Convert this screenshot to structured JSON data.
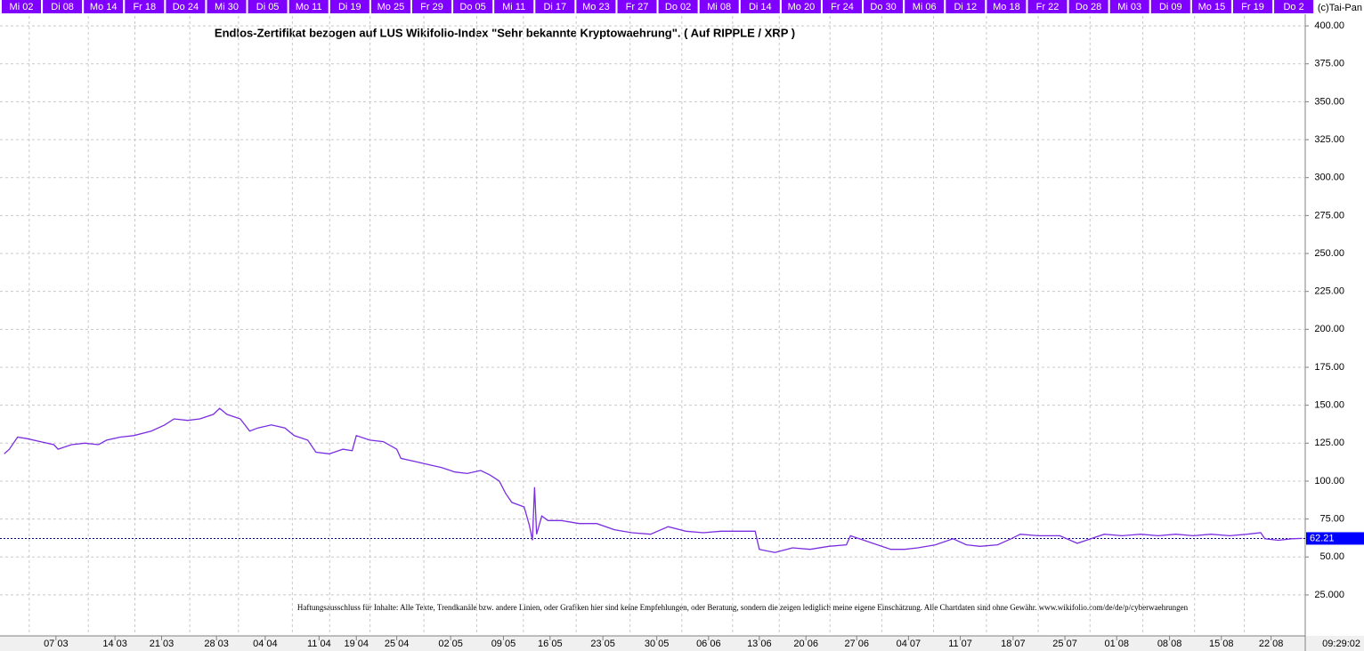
{
  "chart_data": {
    "type": "line",
    "title": "Endlos-Zertifikat bezogen auf LUS Wikifolio-Index \"Sehr bekannte Kryptowaehrung\". ( Auf RIPPLE / XRP )",
    "copyright": "(c)Tai-Pan",
    "disclaimer": "Haftungsausschluss für Inhalte: Alle Texte, Trendkanäle bzw. andere Linien, oder Grafiken hier sind keine Empfehlungen, oder Beratung, sondern die zeigen lediglich meine eigene Einschätzung. Alle Chartdaten sind ohne Gewähr.  www.wikifolio.com/de/de/p/cyberwaehrungen",
    "time": "09:29:02",
    "top_labels": [
      "Mi 02",
      "Di 08",
      "Mo 14",
      "Fr 18",
      "Do 24",
      "Mi 30",
      "Di 05",
      "Mo 11",
      "Di 19",
      "Mo 25",
      "Fr 29",
      "Do 05",
      "Mi 11",
      "Di 17",
      "Mo 23",
      "Fr 27",
      "Do 02",
      "Mi 08",
      "Di 14",
      "Mo 20",
      "Fr 24",
      "Do 30",
      "Mi 06",
      "Di 12",
      "Mo 18",
      "Fr 22",
      "Do 28",
      "Mi 03",
      "Di 09",
      "Mo 15",
      "Fr 19",
      "Do 2"
    ],
    "last_value": 62.21,
    "color": "#7a2ee0",
    "grid": true,
    "xlim": [
      0,
      126
    ],
    "ylim": [
      -2,
      406.5
    ],
    "xticks": [
      {
        "value": 5.4,
        "label": "07 03"
      },
      {
        "value": 11.1,
        "label": "14 03"
      },
      {
        "value": 15.6,
        "label": "21 03"
      },
      {
        "value": 20.9,
        "label": "28 03"
      },
      {
        "value": 25.6,
        "label": "04 04"
      },
      {
        "value": 30.8,
        "label": "11 04"
      },
      {
        "value": 34.4,
        "label": "19 04"
      },
      {
        "value": 38.3,
        "label": "25 04"
      },
      {
        "value": 43.5,
        "label": "02 05"
      },
      {
        "value": 48.6,
        "label": "09 05"
      },
      {
        "value": 53.1,
        "label": "16 05"
      },
      {
        "value": 58.2,
        "label": "23 05"
      },
      {
        "value": 63.4,
        "label": "30 05"
      },
      {
        "value": 68.4,
        "label": "06 06"
      },
      {
        "value": 73.3,
        "label": "13 06"
      },
      {
        "value": 77.8,
        "label": "20 06"
      },
      {
        "value": 82.7,
        "label": "27 06"
      },
      {
        "value": 87.7,
        "label": "04 07"
      },
      {
        "value": 92.7,
        "label": "11 07"
      },
      {
        "value": 97.8,
        "label": "18 07"
      },
      {
        "value": 102.8,
        "label": "25 07"
      },
      {
        "value": 107.8,
        "label": "01 08"
      },
      {
        "value": 112.9,
        "label": "08 08"
      },
      {
        "value": 117.9,
        "label": "15 08"
      },
      {
        "value": 122.7,
        "label": "22 08"
      }
    ],
    "yticks": [
      {
        "value": 400,
        "label": "400.00"
      },
      {
        "value": 375,
        "label": "375.00"
      },
      {
        "value": 350,
        "label": "350.00"
      },
      {
        "value": 325,
        "label": "325.00"
      },
      {
        "value": 300,
        "label": "300.00"
      },
      {
        "value": 275,
        "label": "275.00"
      },
      {
        "value": 250,
        "label": "250.00"
      },
      {
        "value": 225,
        "label": "225.00"
      },
      {
        "value": 200,
        "label": "200.00"
      },
      {
        "value": 175,
        "label": "175.00"
      },
      {
        "value": 150,
        "label": "150.00"
      },
      {
        "value": 125,
        "label": "125.00"
      },
      {
        "value": 100,
        "label": "100.00"
      },
      {
        "value": 75,
        "label": "75.00"
      },
      {
        "value": 50,
        "label": "50.00"
      },
      {
        "value": 25,
        "label": "25.000"
      }
    ],
    "x": [
      0.4,
      0.9,
      1.7,
      2.6,
      3.9,
      5.2,
      5.6,
      6.9,
      8.2,
      9.5,
      10.3,
      11.6,
      12.9,
      14.6,
      15.9,
      16.8,
      18.1,
      19.3,
      20.6,
      21.2,
      21.9,
      23.2,
      24.1,
      24.9,
      26.2,
      27.5,
      28.4,
      29.7,
      30.5,
      31.8,
      33.1,
      34.0,
      34.4,
      35.7,
      37.0,
      38.3,
      38.7,
      40.0,
      41.3,
      42.6,
      43.9,
      45.1,
      46.4,
      47.3,
      48.2,
      48.8,
      49.4,
      50.6,
      51.1,
      51.4,
      51.6,
      51.8,
      52.3,
      52.9,
      54.2,
      55.9,
      57.6,
      59.3,
      61.0,
      62.8,
      64.5,
      66.2,
      67.9,
      69.6,
      71.4,
      72.9,
      73.3,
      74.8,
      76.5,
      78.2,
      80.0,
      81.7,
      82.1,
      83.4,
      84.7,
      86.0,
      87.3,
      88.6,
      90.3,
      92.0,
      93.3,
      94.6,
      96.3,
      97.6,
      98.5,
      100.2,
      102.3,
      104.0,
      105.3,
      106.6,
      108.3,
      110.1,
      111.8,
      113.5,
      115.2,
      116.9,
      118.7,
      120.4,
      121.7,
      122.1,
      123.4,
      124.7,
      125.7
    ],
    "values": [
      118,
      121,
      129,
      128,
      126,
      124,
      121,
      124,
      125,
      124,
      127,
      129,
      130,
      133,
      137,
      141,
      140,
      141,
      144,
      148,
      144,
      141,
      133,
      135,
      137,
      135,
      130,
      127,
      119,
      118,
      121,
      120,
      130,
      127,
      126,
      121,
      115,
      113,
      111,
      109,
      106,
      105,
      107,
      104,
      100,
      92,
      86,
      83,
      71,
      61,
      96,
      65,
      77,
      74,
      74,
      72,
      72,
      68,
      66,
      65,
      70,
      67,
      66,
      67,
      67,
      67,
      55,
      53,
      56,
      55,
      57,
      58,
      64,
      61,
      58,
      55,
      55,
      56,
      58,
      62,
      58,
      57,
      58,
      62,
      65,
      64,
      64,
      59,
      62,
      65,
      64,
      65,
      64,
      65,
      64,
      65,
      64,
      65,
      66,
      62,
      61,
      62,
      62.21
    ]
  }
}
